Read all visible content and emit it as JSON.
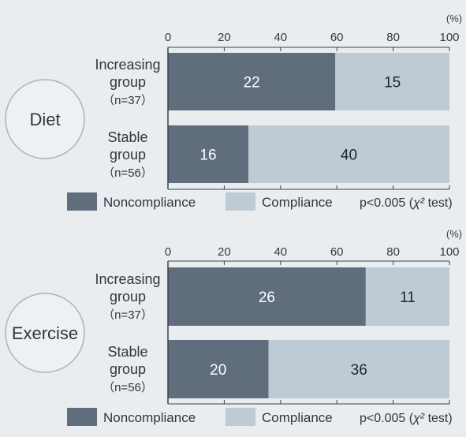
{
  "chart_data": [
    {
      "type": "bar",
      "orientation": "horizontal",
      "stacked": "percent",
      "title": "Diet",
      "unit": "(%)",
      "xlim": [
        0,
        100
      ],
      "ticks": [
        "0",
        "20",
        "40",
        "60",
        "80",
        "100"
      ],
      "categories": [
        {
          "line1": "Increasing",
          "line2": "group",
          "n": "（n=37）"
        },
        {
          "line1": "Stable",
          "line2": "group",
          "n": "（n=56）"
        }
      ],
      "series": [
        {
          "name": "Noncompliance",
          "values": [
            22,
            16
          ],
          "color": "#5f6d7c"
        },
        {
          "name": "Compliance",
          "values": [
            15,
            40
          ],
          "color": "#bfcbd4"
        }
      ],
      "note": {
        "prefix": "p<0.005 (",
        "symbol": "χ²",
        "suffix": " test)"
      }
    },
    {
      "type": "bar",
      "orientation": "horizontal",
      "stacked": "percent",
      "title": "Exercise",
      "unit": "(%)",
      "xlim": [
        0,
        100
      ],
      "ticks": [
        "0",
        "20",
        "40",
        "60",
        "80",
        "100"
      ],
      "categories": [
        {
          "line1": "Increasing",
          "line2": "group",
          "n": "（n=37）"
        },
        {
          "line1": "Stable",
          "line2": "group",
          "n": "（n=56）"
        }
      ],
      "series": [
        {
          "name": "Noncompliance",
          "values": [
            26,
            20
          ],
          "color": "#5f6d7c"
        },
        {
          "name": "Compliance",
          "values": [
            11,
            36
          ],
          "color": "#bfcbd4"
        }
      ],
      "note": {
        "prefix": "p<0.005 (",
        "symbol": "χ²",
        "suffix": " test)"
      }
    }
  ],
  "colors": {
    "circle_fill": "#eef1f3",
    "circle_stroke": "#a9b3bc",
    "axis": "#3a434c"
  }
}
